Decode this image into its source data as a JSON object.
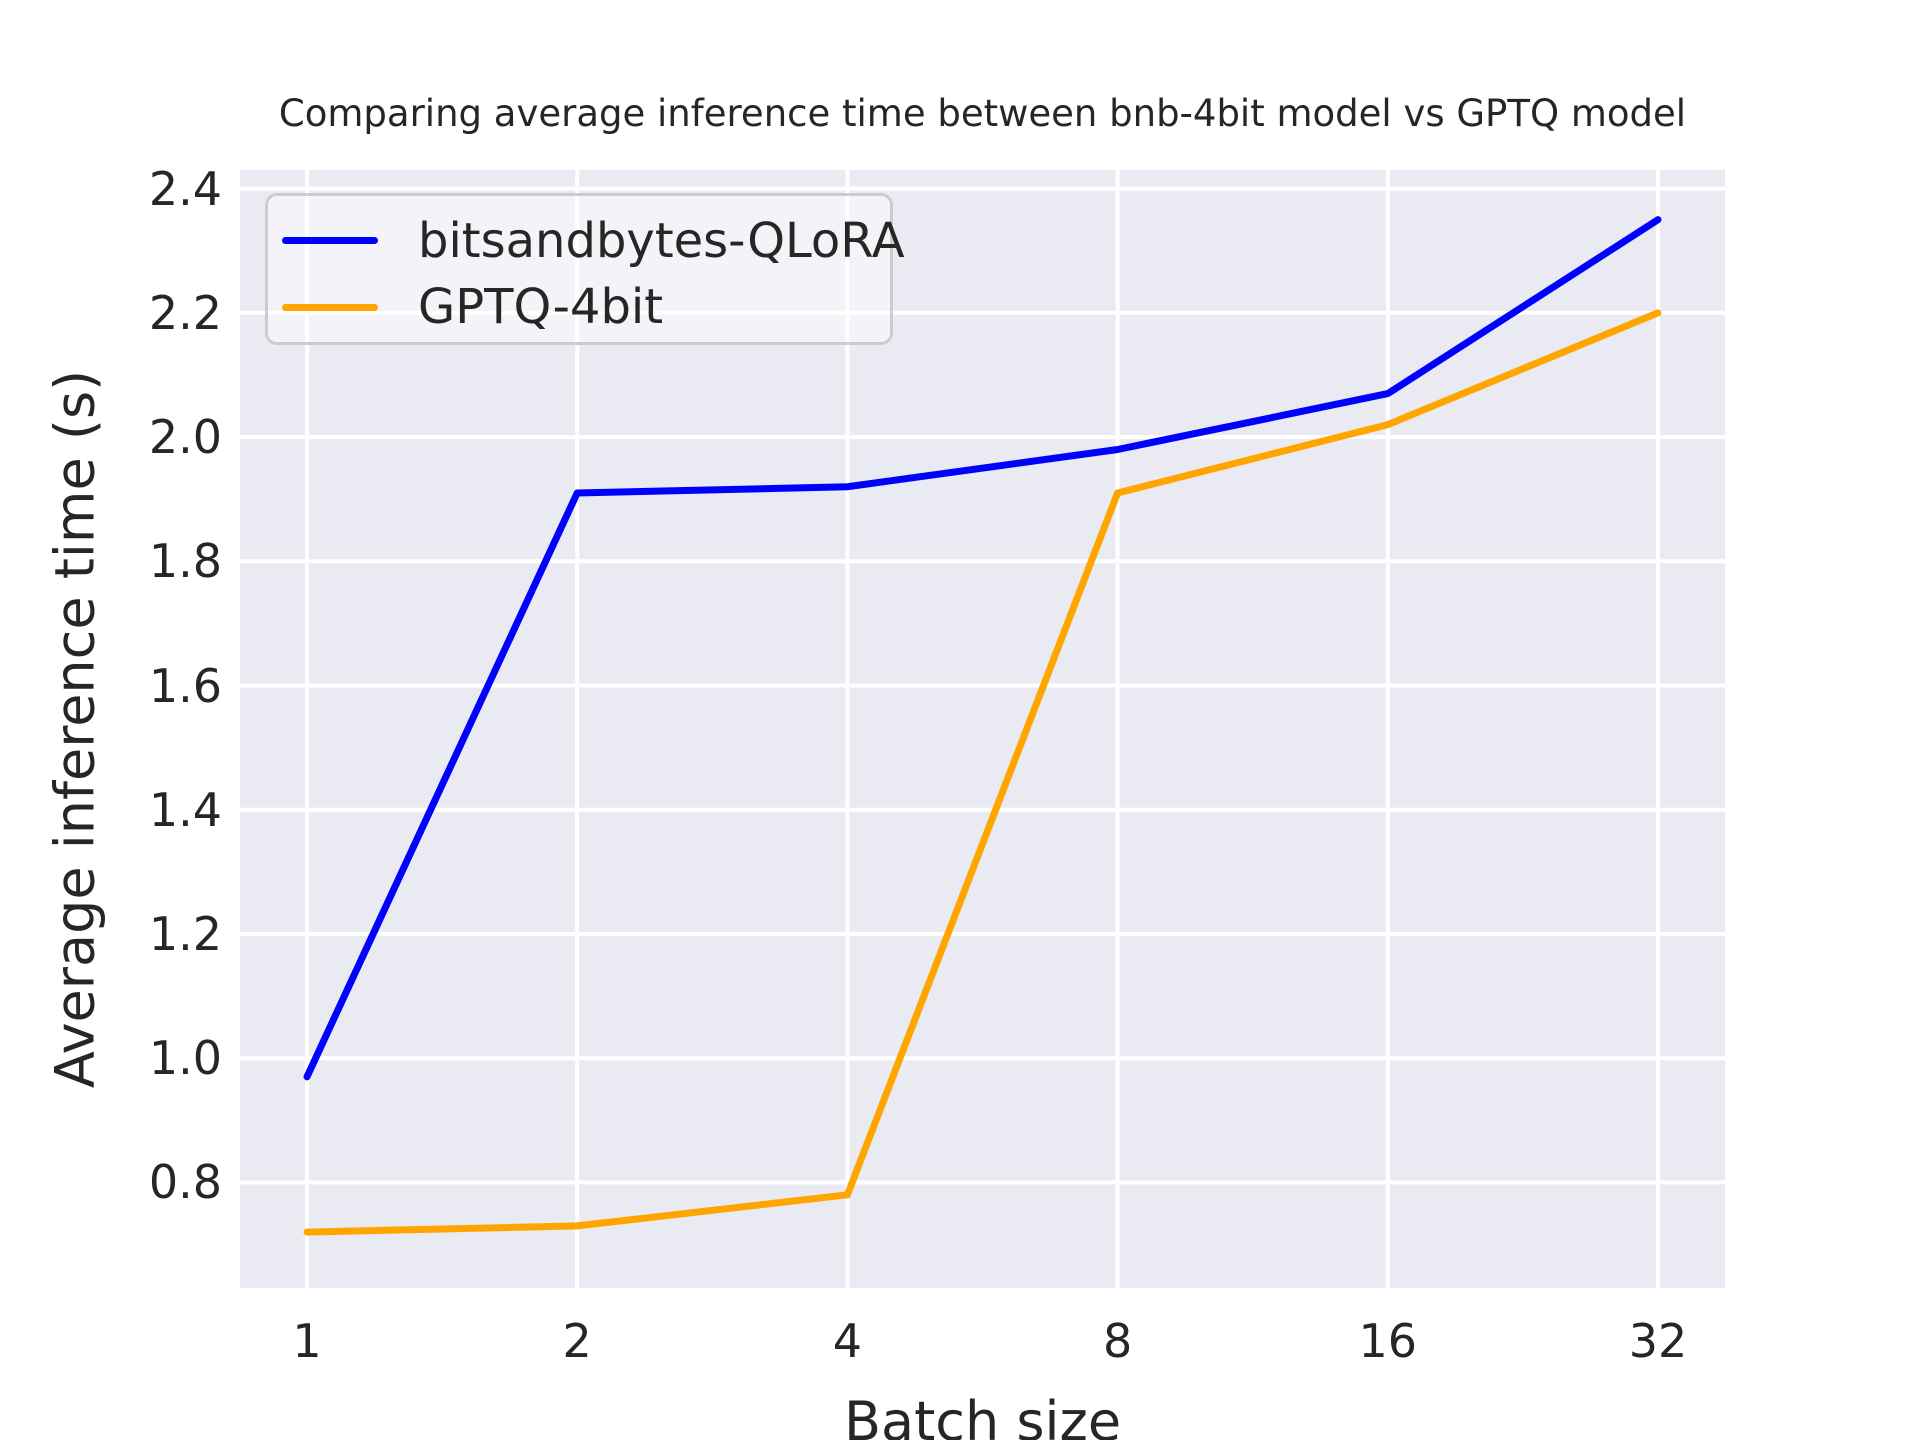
{
  "chart_data": {
    "type": "line",
    "title": "Comparing average inference time between bnb-4bit model vs GPTQ model",
    "xlabel": "Batch size",
    "ylabel": "Average inference time (s)",
    "categories": [
      1,
      2,
      4,
      8,
      16,
      32
    ],
    "x_scale": "log2-categorical",
    "yticks": [
      0.8,
      1.0,
      1.2,
      1.4,
      1.6,
      1.8,
      2.0,
      2.2,
      2.4
    ],
    "ylim": [
      0.63,
      2.43
    ],
    "grid": true,
    "legend_position": "upper-left",
    "series": [
      {
        "name": "bitsandbytes-QLoRA",
        "color": "#0000FF",
        "values": [
          0.97,
          1.91,
          1.92,
          1.98,
          2.07,
          2.35
        ]
      },
      {
        "name": "GPTQ-4bit",
        "color": "#FFA500",
        "values": [
          0.72,
          0.73,
          0.78,
          1.91,
          2.02,
          2.2
        ]
      }
    ]
  },
  "colors": {
    "page_bg": "#FFFFFF",
    "plot_bg": "#EAEAF2",
    "grid": "#FFFFFF",
    "text": "#262626",
    "legend_border": "#CCCCCC"
  }
}
